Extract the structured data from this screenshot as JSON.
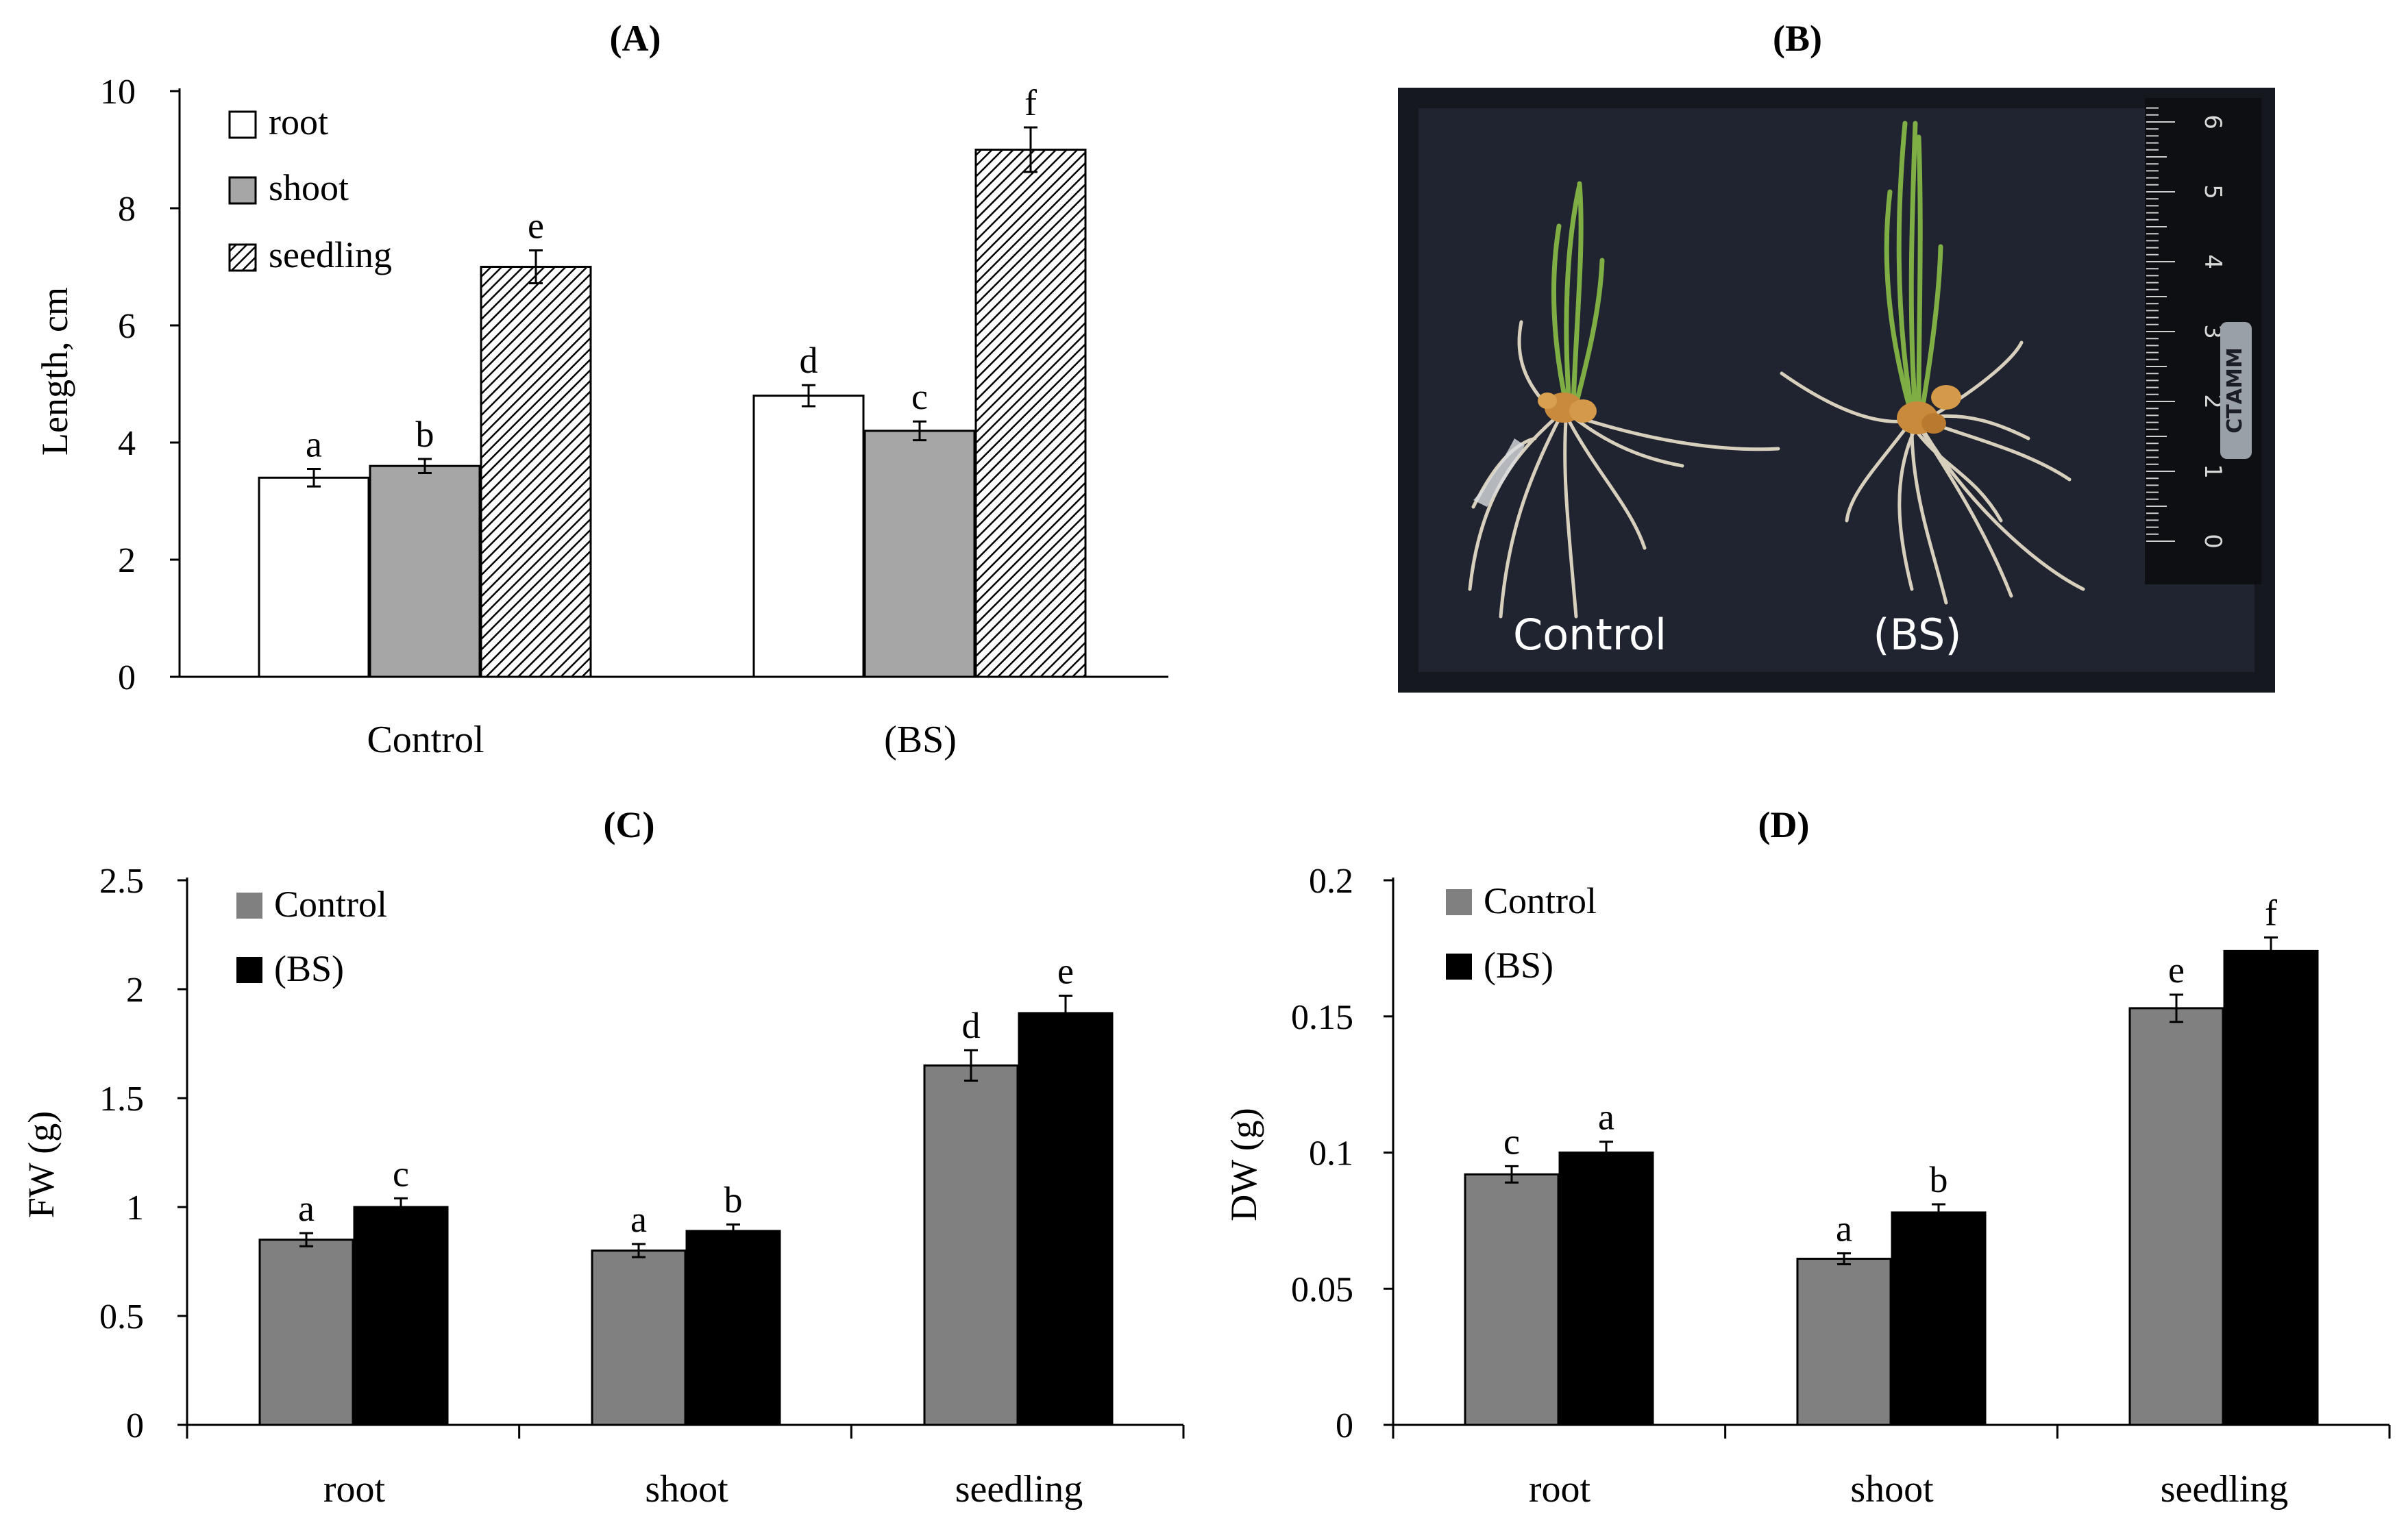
{
  "panels": {
    "A": {
      "label": "(A)"
    },
    "B": {
      "label": "(B)"
    },
    "C": {
      "label": "(C)"
    },
    "D": {
      "label": "(D)"
    }
  },
  "photo": {
    "left_label": "Control",
    "right_label": "(BS)",
    "ruler_brand": "СТАММ",
    "ruler_numbers": [
      "0",
      "1",
      "2",
      "3",
      "4",
      "5",
      "6"
    ]
  },
  "colors": {
    "white_bar": "#ffffff",
    "shoot_bar": "#a6a6a6",
    "control_bar": "#808080",
    "bs_bar": "#000000",
    "photo_bg": "#1f2430"
  },
  "chart_data": [
    {
      "id": "A",
      "type": "bar",
      "title": "(A)",
      "ylabel": "Length, cm",
      "xlabel": "",
      "ylim": [
        0,
        10
      ],
      "yticks": [
        "0",
        "2",
        "4",
        "6",
        "8",
        "10"
      ],
      "categories": [
        "Control",
        "(BS)"
      ],
      "legend_position": "top-left",
      "series": [
        {
          "name": "root",
          "fill": "white",
          "values": [
            3.4,
            4.8
          ],
          "errors": [
            0.15,
            0.18
          ],
          "letters": [
            "a",
            "d"
          ]
        },
        {
          "name": "shoot",
          "fill": "gray",
          "values": [
            3.6,
            4.2
          ],
          "errors": [
            0.12,
            0.16
          ],
          "letters": [
            "b",
            "c"
          ]
        },
        {
          "name": "seedling",
          "fill": "hatched",
          "values": [
            7.0,
            9.0
          ],
          "errors": [
            0.28,
            0.38
          ],
          "letters": [
            "e",
            "f"
          ]
        }
      ]
    },
    {
      "id": "C",
      "type": "bar",
      "title": "(C)",
      "ylabel": "FW (g)",
      "xlabel": "",
      "ylim": [
        0,
        2.5
      ],
      "yticks": [
        "0",
        "0.5",
        "1",
        "1.5",
        "2",
        "2.5"
      ],
      "categories": [
        "root",
        "shoot",
        "seedling"
      ],
      "legend_position": "top-left",
      "series": [
        {
          "name": "Control",
          "values": [
            0.85,
            0.8,
            1.65
          ],
          "errors": [
            0.03,
            0.03,
            0.07
          ],
          "letters": [
            "a",
            "a",
            "d"
          ]
        },
        {
          "name": "(BS)",
          "values": [
            1.0,
            0.89,
            1.89
          ],
          "errors": [
            0.04,
            0.03,
            0.08
          ],
          "letters": [
            "c",
            "b",
            "e"
          ]
        }
      ]
    },
    {
      "id": "D",
      "type": "bar",
      "title": "(D)",
      "ylabel": "DW (g)",
      "xlabel": "",
      "ylim": [
        0,
        0.2
      ],
      "yticks": [
        "0",
        "0.05",
        "0.1",
        "0.15",
        "0.2"
      ],
      "categories": [
        "root",
        "shoot",
        "seedling"
      ],
      "legend_position": "top-left",
      "series": [
        {
          "name": "Control",
          "values": [
            0.092,
            0.061,
            0.153
          ],
          "errors": [
            0.003,
            0.002,
            0.005
          ],
          "letters": [
            "c",
            "a",
            "e"
          ]
        },
        {
          "name": "(BS)",
          "values": [
            0.1,
            0.078,
            0.174
          ],
          "errors": [
            0.004,
            0.003,
            0.005
          ],
          "letters": [
            "a",
            "b",
            "f"
          ]
        }
      ]
    }
  ]
}
